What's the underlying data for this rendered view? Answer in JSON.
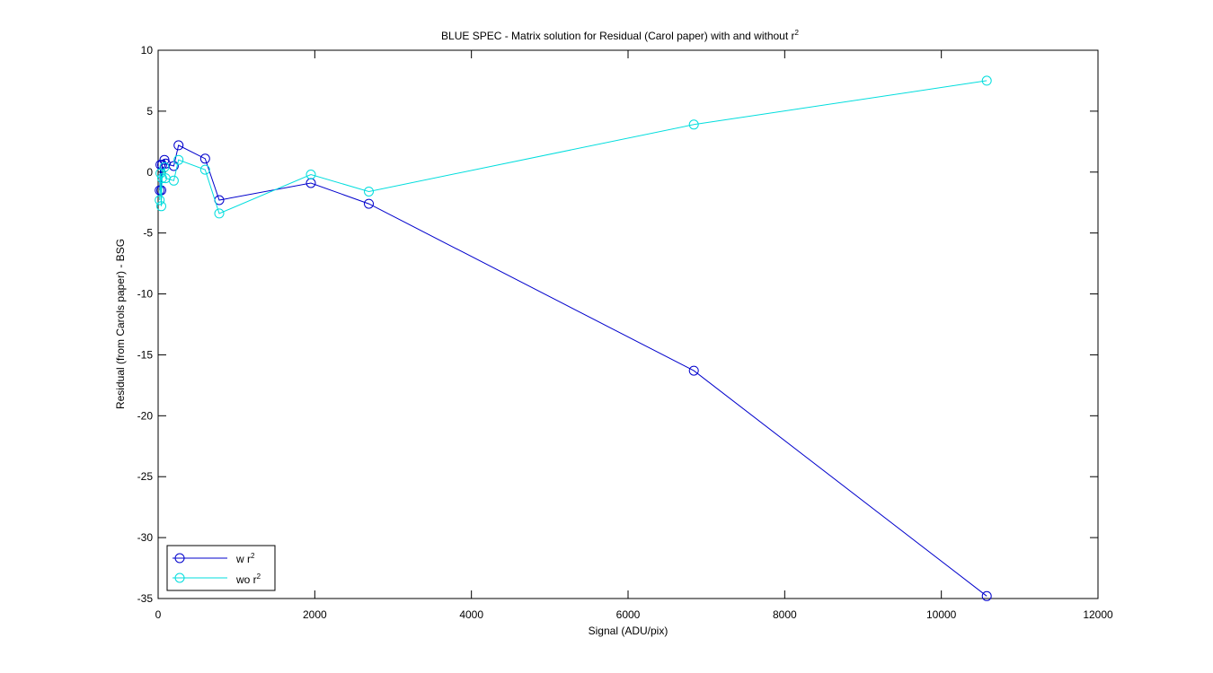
{
  "chart_data": {
    "type": "line",
    "title": "BLUE SPEC - Matrix solution for Residual (Carol paper) with and without r",
    "title_superscript": "2",
    "xlabel": "Signal (ADU/pix)",
    "ylabel": "Residual (from Carols paper) - BSG",
    "xlim": [
      0,
      12000
    ],
    "ylim": [
      -35,
      10
    ],
    "xticks": [
      0,
      2000,
      4000,
      6000,
      8000,
      10000,
      12000
    ],
    "yticks": [
      -35,
      -30,
      -25,
      -20,
      -15,
      -10,
      -5,
      0,
      5,
      10
    ],
    "xtick_labels": [
      "0",
      "2000",
      "4000",
      "6000",
      "8000",
      "10000",
      "12000"
    ],
    "ytick_labels": [
      "-35",
      "-30",
      "-25",
      "-20",
      "-15",
      "-10",
      "-5",
      "0",
      "5",
      "10"
    ],
    "grid": false,
    "legend_position": "bottom-left",
    "marker": "circle",
    "series": [
      {
        "name": "w r",
        "name_superscript": "2",
        "color": "#0000cc",
        "x": [
          20,
          30,
          40,
          50,
          80,
          95,
          200,
          260,
          600,
          780,
          1950,
          2690,
          6840,
          10580
        ],
        "y": [
          -1.5,
          0.6,
          -1.5,
          0.6,
          1.0,
          0.7,
          0.5,
          2.2,
          1.1,
          -2.3,
          -0.9,
          -2.6,
          -16.3,
          -34.8
        ]
      },
      {
        "name": "wo r",
        "name_superscript": "2",
        "color": "#00dddd",
        "x": [
          20,
          30,
          40,
          50,
          80,
          95,
          200,
          260,
          600,
          780,
          1950,
          2690,
          6840,
          10580
        ],
        "y": [
          -2.3,
          -0.1,
          -2.8,
          -0.5,
          0.4,
          -0.5,
          -0.7,
          1.0,
          0.2,
          -3.4,
          -0.2,
          -1.6,
          3.9,
          7.5
        ]
      }
    ]
  }
}
